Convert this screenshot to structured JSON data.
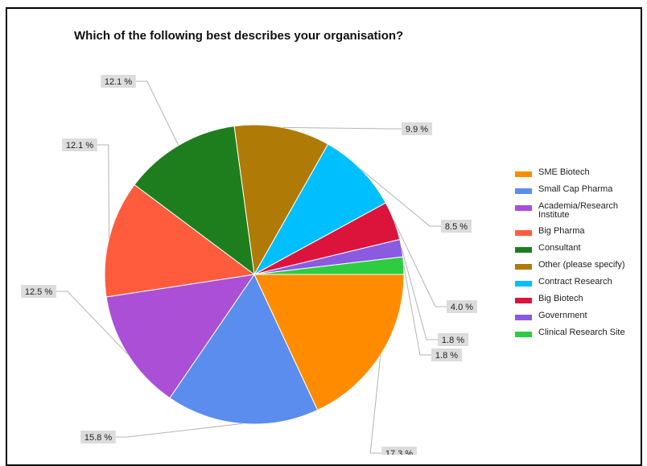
{
  "chart_data": {
    "type": "pie",
    "title": "Which of the following best describes your organisation?",
    "slices": [
      {
        "label": "SME Biotech",
        "value": 17.3,
        "value_label": "17.3 %",
        "color": "#ff8c00"
      },
      {
        "label": "Small Cap Pharma",
        "value": 15.8,
        "value_label": "15.8 %",
        "color": "#5b8def"
      },
      {
        "label": "Academia/Research Institute",
        "value": 12.5,
        "value_label": "12.5 %",
        "color": "#aa4fd6"
      },
      {
        "label": "Big Pharma",
        "value": 12.1,
        "value_label": "12.1 %",
        "color": "#ff5c3e"
      },
      {
        "label": "Consultant",
        "value": 12.1,
        "value_label": "12.1 %",
        "color": "#1e7e1e"
      },
      {
        "label": "Other (please specify)",
        "value": 9.9,
        "value_label": "9.9 %",
        "color": "#b07a06"
      },
      {
        "label": "Contract Research",
        "value": 8.5,
        "value_label": "8.5 %",
        "color": "#00bfff"
      },
      {
        "label": "Big Biotech",
        "value": 4.0,
        "value_label": "4.0 %",
        "color": "#dc143c"
      },
      {
        "label": "Government",
        "value": 1.8,
        "value_label": "1.8 %",
        "color": "#8a5be0"
      },
      {
        "label": "Clinical Research Site",
        "value": 1.8,
        "value_label": "1.8 %",
        "color": "#2ecc40"
      }
    ],
    "legend_position": "right"
  }
}
